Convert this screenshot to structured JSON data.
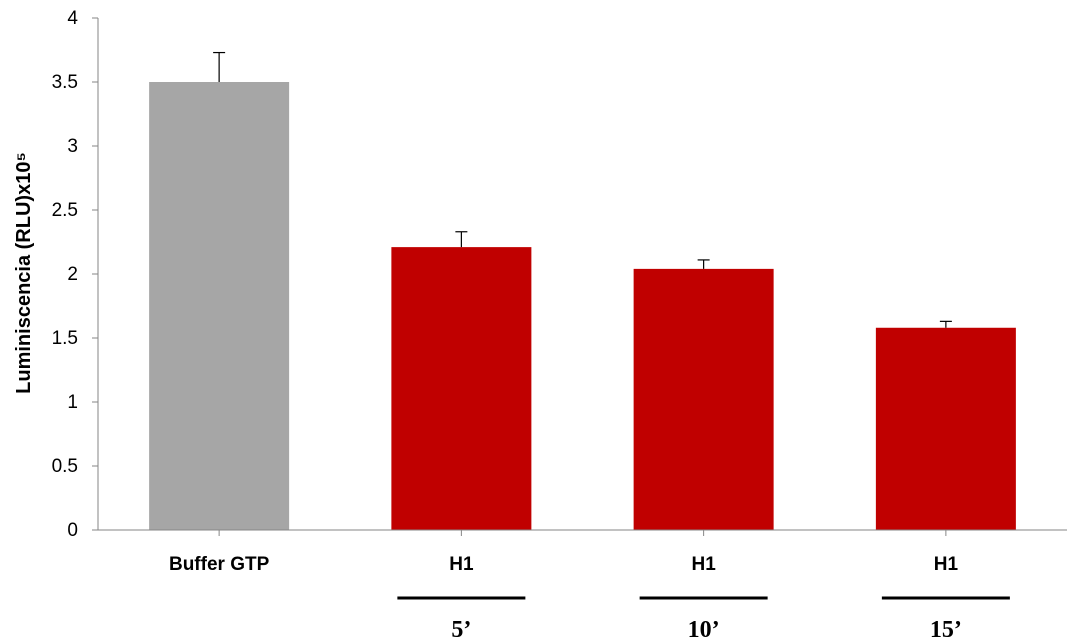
{
  "chart_data": {
    "type": "bar",
    "categories": [
      "Buffer GTP",
      "H1",
      "H1",
      "H1"
    ],
    "values": [
      3.5,
      2.21,
      2.04,
      1.58
    ],
    "errors": [
      0.23,
      0.12,
      0.07,
      0.05
    ],
    "colors": [
      "#a6a6a6",
      "#c00000",
      "#c00000",
      "#c00000"
    ],
    "ylabel": "Luminiscencia (RLU)x10⁵",
    "ylim": [
      0,
      4
    ],
    "yticks": [
      "0",
      "0.5",
      "1",
      "1.5",
      "2",
      "2.5",
      "3",
      "3.5",
      "4"
    ],
    "time_labels": [
      "5’",
      "10’",
      "15’"
    ],
    "grid": false,
    "legend": "none"
  }
}
